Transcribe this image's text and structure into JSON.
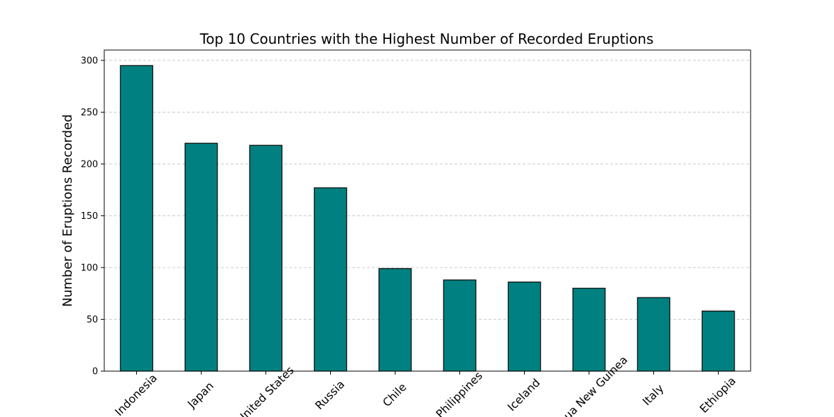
{
  "chart_data": {
    "type": "bar",
    "title": "Top 10 Countries with the Highest Number of Recorded Eruptions",
    "xlabel": "",
    "ylabel": "Number of Eruptions Recorded",
    "categories": [
      "Indonesia",
      "Japan",
      "United States",
      "Russia",
      "Chile",
      "Philippines",
      "Iceland",
      "Papua New Guinea",
      "Italy",
      "Ethiopia"
    ],
    "values": [
      295,
      220,
      218,
      177,
      99,
      88,
      86,
      80,
      71,
      58
    ],
    "ylim": [
      0,
      310
    ],
    "yticks": [
      0,
      50,
      100,
      150,
      200,
      250,
      300
    ],
    "grid": "horizontal dashed",
    "colors": {
      "bar_fill": "#008080",
      "bar_edge": "#000000",
      "grid": "#c8c8c8",
      "axis": "#000000"
    }
  }
}
